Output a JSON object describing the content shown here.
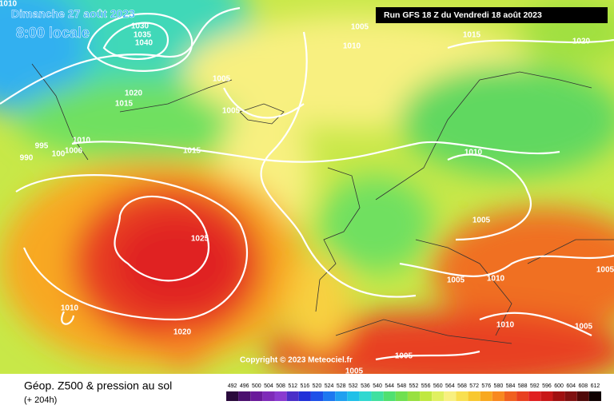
{
  "header": {
    "date": "Dimanche 27 août 2023",
    "local_time": "8:00 locale",
    "run": "Run GFS 18 Z du Vendredi 18 août 2023"
  },
  "copyright": "Copyright © 2023 Meteociel.fr",
  "footer": {
    "title": "Géop. Z500 & pression au sol",
    "lead_time": "(+ 204h)"
  },
  "isobar_labels": [
    "1010",
    "1030",
    "1035",
    "1040",
    "1005",
    "1015",
    "1020",
    "1010",
    "1005",
    "1020",
    "1015",
    "1005",
    "995",
    "1010",
    "1006",
    "100",
    "990",
    "1015",
    "1010",
    "1025",
    "1005",
    "1005",
    "1010",
    "1010",
    "1020",
    "1010",
    "1005",
    "1005",
    "1005",
    "1005"
  ],
  "legend": {
    "values": [
      492,
      496,
      500,
      504,
      508,
      512,
      516,
      520,
      524,
      528,
      532,
      536,
      540,
      544,
      548,
      552,
      556,
      560,
      564,
      568,
      572,
      576,
      580,
      584,
      588,
      592,
      596,
      600,
      604,
      608,
      612
    ],
    "colors": [
      "#2a0a3c",
      "#4b0f6e",
      "#6a1a9a",
      "#7e2ab8",
      "#8a3ad0",
      "#4a2ec8",
      "#2030d8",
      "#1e50e8",
      "#1e78f0",
      "#20a0f0",
      "#20c0e8",
      "#30d8d0",
      "#40e0a0",
      "#50e070",
      "#70e050",
      "#98e040",
      "#c0e840",
      "#e0f060",
      "#f8f080",
      "#f8e050",
      "#f8c830",
      "#f8a820",
      "#f88820",
      "#f06020",
      "#e84020",
      "#e02020",
      "#c81818",
      "#a01010",
      "#801010",
      "#500808",
      "#100000"
    ]
  }
}
